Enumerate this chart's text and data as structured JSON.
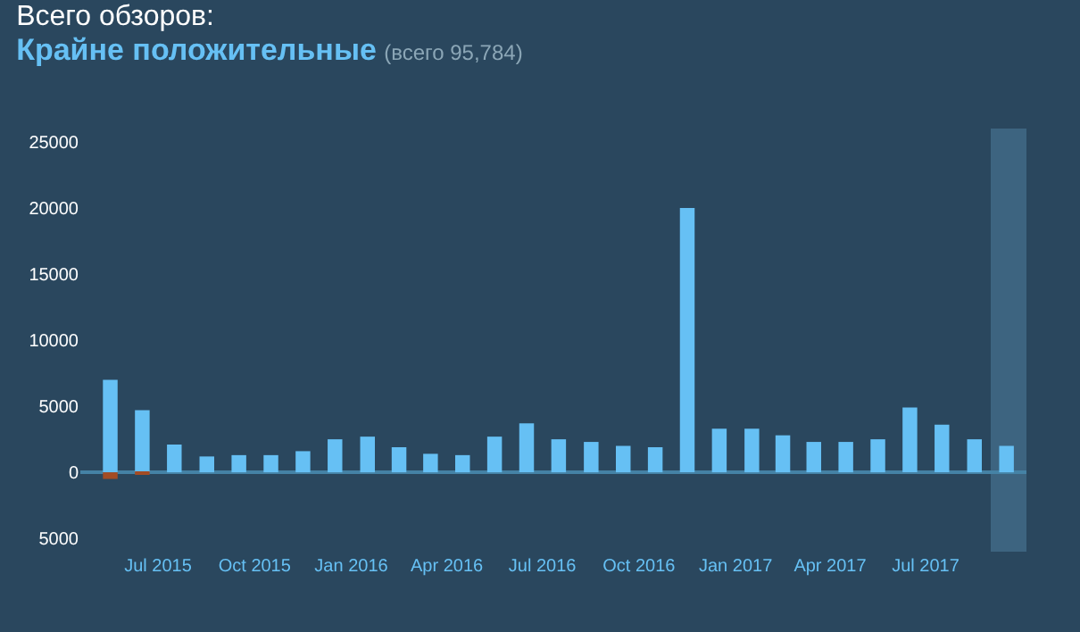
{
  "chart_data": {
    "type": "bar",
    "title": "Всего обзоров:",
    "subtitle": "Крайне положительные",
    "annotations": [
      "(всего 95,784)"
    ],
    "x": [
      "2015-05",
      "2015-06",
      "2015-07",
      "2015-08",
      "2015-09",
      "2015-10",
      "2015-11",
      "2015-12",
      "2016-01",
      "2016-02",
      "2016-03",
      "2016-04",
      "2016-05",
      "2016-06",
      "2016-07",
      "2016-08",
      "2016-09",
      "2016-10",
      "2016-11",
      "2016-12",
      "2017-01",
      "2017-02",
      "2017-03",
      "2017-04",
      "2017-05",
      "2017-06",
      "2017-07",
      "2017-08",
      "2017-09"
    ],
    "series": [
      {
        "color": "#66c0f4",
        "values": [
          7000,
          4700,
          2100,
          1200,
          1300,
          1300,
          1600,
          2500,
          2700,
          1900,
          1400,
          1300,
          2700,
          3700,
          2500,
          2300,
          2000,
          1900,
          20000,
          3300,
          3300,
          2800,
          2300,
          2300,
          2500,
          4900,
          3600,
          2500,
          2000
        ]
      },
      {
        "color": "#a34c25",
        "values": [
          -500,
          -100,
          0,
          0,
          0,
          0,
          0,
          0,
          0,
          0,
          0,
          0,
          0,
          0,
          0,
          0,
          0,
          0,
          0,
          0,
          0,
          0,
          0,
          0,
          0,
          0,
          0,
          0,
          0
        ]
      }
    ],
    "xlim": [
      "2015-04-18",
      "2017-10-05"
    ],
    "xticks": [
      {
        "value": "2015-07",
        "label": "Jul 2015"
      },
      {
        "value": "2015-10",
        "label": "Oct 2015"
      },
      {
        "value": "2016-01",
        "label": "Jan 2016"
      },
      {
        "value": "2016-04",
        "label": "Apr 2016"
      },
      {
        "value": "2016-07",
        "label": "Jul 2016"
      },
      {
        "value": "2016-10",
        "label": "Oct 2016"
      },
      {
        "value": "2017-01",
        "label": "Jan 2017"
      },
      {
        "value": "2017-04",
        "label": "Apr 2017"
      },
      {
        "value": "2017-07",
        "label": "Jul 2017"
      }
    ],
    "ylim": [
      -6000,
      26000
    ],
    "yticks": [
      {
        "value": -5000,
        "label": "5000"
      },
      0,
      5000,
      10000,
      15000,
      20000,
      25000
    ],
    "bands": [
      {
        "axis": "x",
        "from": "2017-09-01",
        "to": "2017-10-05",
        "color": "#3d6480"
      }
    ],
    "ref_lines": [
      {
        "axis": "y",
        "value": 0,
        "color": "#4582a5"
      }
    ],
    "grid": false
  }
}
